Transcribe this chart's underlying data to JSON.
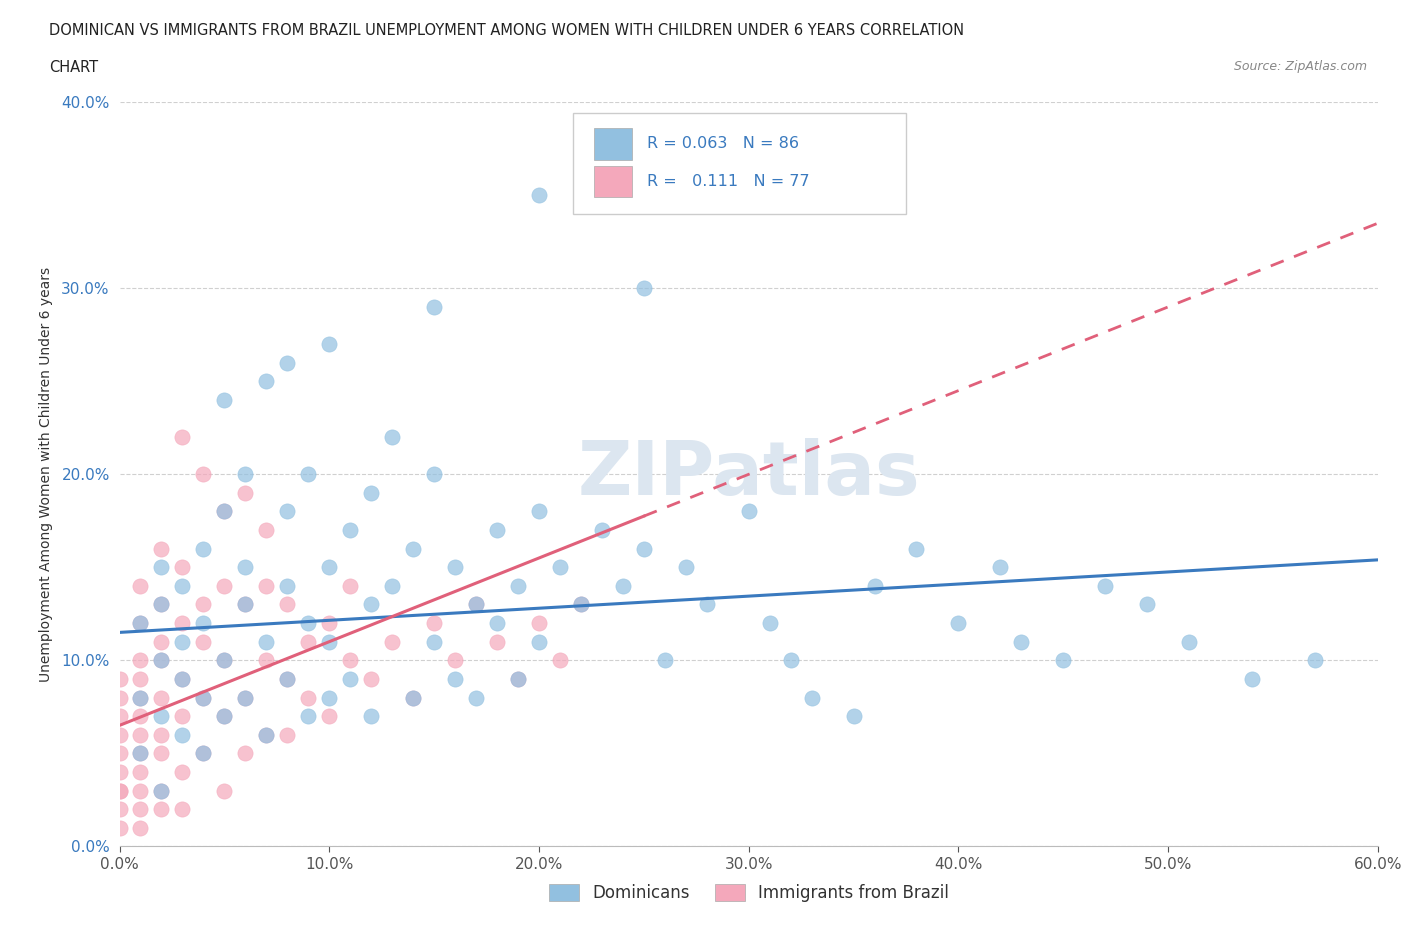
{
  "title_line1": "DOMINICAN VS IMMIGRANTS FROM BRAZIL UNEMPLOYMENT AMONG WOMEN WITH CHILDREN UNDER 6 YEARS CORRELATION",
  "title_line2": "CHART",
  "source": "Source: ZipAtlas.com",
  "ylabel": "Unemployment Among Women with Children Under 6 years",
  "xlim": [
    0.0,
    0.6
  ],
  "ylim": [
    0.0,
    0.4
  ],
  "xticks": [
    0.0,
    0.1,
    0.2,
    0.3,
    0.4,
    0.5,
    0.6
  ],
  "xtick_labels": [
    "0.0%",
    "10.0%",
    "20.0%",
    "30.0%",
    "40.0%",
    "50.0%",
    "60.0%"
  ],
  "yticks": [
    0.0,
    0.1,
    0.2,
    0.3,
    0.4
  ],
  "ytick_labels": [
    "0.0%",
    "10.0%",
    "20.0%",
    "30.0%",
    "40.0%"
  ],
  "blue_color": "#92c0e0",
  "pink_color": "#f4a8bb",
  "blue_line_color": "#3a7abf",
  "pink_line_color": "#e0607a",
  "blue_tick_color": "#3a7abf",
  "watermark_text": "ZIPatlas",
  "dominicans_x": [
    0.01,
    0.01,
    0.01,
    0.02,
    0.02,
    0.02,
    0.02,
    0.02,
    0.03,
    0.03,
    0.03,
    0.03,
    0.04,
    0.04,
    0.04,
    0.04,
    0.05,
    0.05,
    0.05,
    0.06,
    0.06,
    0.06,
    0.06,
    0.07,
    0.07,
    0.07,
    0.08,
    0.08,
    0.08,
    0.09,
    0.09,
    0.09,
    0.1,
    0.1,
    0.1,
    0.11,
    0.11,
    0.12,
    0.12,
    0.12,
    0.13,
    0.13,
    0.14,
    0.14,
    0.15,
    0.15,
    0.16,
    0.16,
    0.17,
    0.17,
    0.18,
    0.18,
    0.19,
    0.19,
    0.2,
    0.2,
    0.21,
    0.22,
    0.23,
    0.24,
    0.25,
    0.26,
    0.27,
    0.28,
    0.3,
    0.31,
    0.32,
    0.33,
    0.35,
    0.36,
    0.38,
    0.4,
    0.42,
    0.43,
    0.45,
    0.47,
    0.49,
    0.51,
    0.54,
    0.57,
    0.2,
    0.25,
    0.15,
    0.1,
    0.08,
    0.05
  ],
  "dominicans_y": [
    0.08,
    0.12,
    0.05,
    0.1,
    0.07,
    0.13,
    0.03,
    0.15,
    0.09,
    0.06,
    0.14,
    0.11,
    0.08,
    0.16,
    0.05,
    0.12,
    0.1,
    0.18,
    0.07,
    0.13,
    0.2,
    0.08,
    0.15,
    0.11,
    0.25,
    0.06,
    0.14,
    0.09,
    0.18,
    0.12,
    0.07,
    0.2,
    0.08,
    0.15,
    0.11,
    0.17,
    0.09,
    0.13,
    0.19,
    0.07,
    0.14,
    0.22,
    0.08,
    0.16,
    0.11,
    0.2,
    0.09,
    0.15,
    0.13,
    0.08,
    0.17,
    0.12,
    0.09,
    0.14,
    0.11,
    0.18,
    0.15,
    0.13,
    0.17,
    0.14,
    0.16,
    0.1,
    0.15,
    0.13,
    0.18,
    0.12,
    0.1,
    0.08,
    0.07,
    0.14,
    0.16,
    0.12,
    0.15,
    0.11,
    0.1,
    0.14,
    0.13,
    0.11,
    0.09,
    0.1,
    0.35,
    0.3,
    0.29,
    0.27,
    0.26,
    0.24
  ],
  "brazil_x": [
    0.0,
    0.0,
    0.0,
    0.0,
    0.0,
    0.0,
    0.0,
    0.0,
    0.0,
    0.0,
    0.01,
    0.01,
    0.01,
    0.01,
    0.01,
    0.01,
    0.01,
    0.01,
    0.01,
    0.01,
    0.01,
    0.01,
    0.02,
    0.02,
    0.02,
    0.02,
    0.02,
    0.02,
    0.02,
    0.02,
    0.02,
    0.03,
    0.03,
    0.03,
    0.03,
    0.03,
    0.03,
    0.04,
    0.04,
    0.04,
    0.04,
    0.05,
    0.05,
    0.05,
    0.05,
    0.06,
    0.06,
    0.06,
    0.07,
    0.07,
    0.07,
    0.08,
    0.08,
    0.08,
    0.09,
    0.09,
    0.1,
    0.1,
    0.11,
    0.11,
    0.12,
    0.13,
    0.14,
    0.15,
    0.16,
    0.17,
    0.18,
    0.19,
    0.2,
    0.21,
    0.22,
    0.03,
    0.04,
    0.05,
    0.06,
    0.07
  ],
  "brazil_y": [
    0.03,
    0.05,
    0.07,
    0.02,
    0.08,
    0.04,
    0.06,
    0.01,
    0.09,
    0.03,
    0.05,
    0.08,
    0.02,
    0.1,
    0.06,
    0.03,
    0.12,
    0.04,
    0.07,
    0.09,
    0.14,
    0.01,
    0.06,
    0.1,
    0.03,
    0.13,
    0.08,
    0.05,
    0.16,
    0.02,
    0.11,
    0.07,
    0.12,
    0.04,
    0.09,
    0.15,
    0.02,
    0.08,
    0.13,
    0.05,
    0.11,
    0.07,
    0.14,
    0.03,
    0.1,
    0.08,
    0.13,
    0.05,
    0.1,
    0.06,
    0.14,
    0.09,
    0.13,
    0.06,
    0.11,
    0.08,
    0.12,
    0.07,
    0.1,
    0.14,
    0.09,
    0.11,
    0.08,
    0.12,
    0.1,
    0.13,
    0.11,
    0.09,
    0.12,
    0.1,
    0.13,
    0.22,
    0.2,
    0.18,
    0.19,
    0.17
  ]
}
